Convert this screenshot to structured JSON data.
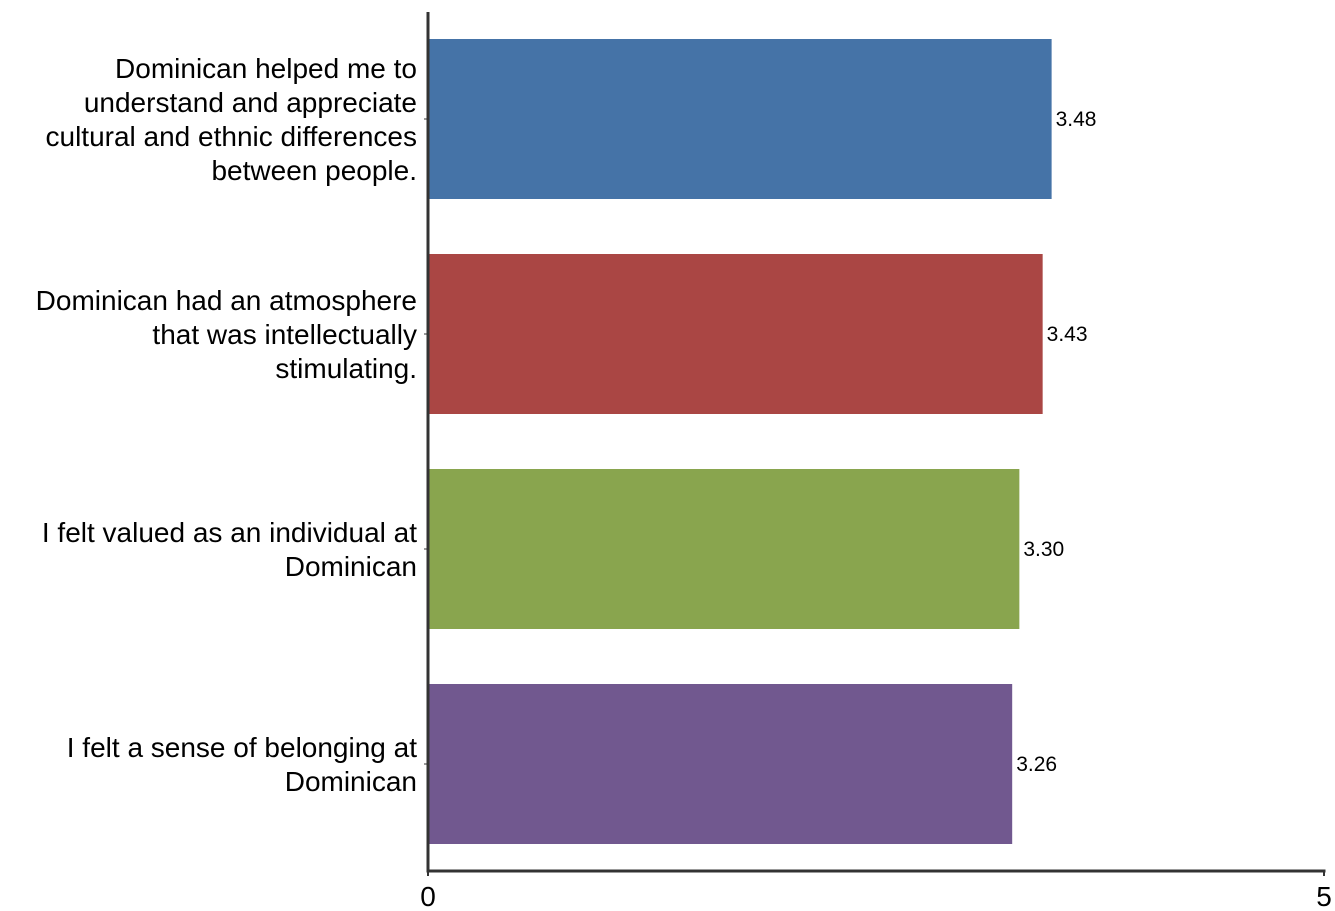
{
  "chart_data": {
    "type": "bar",
    "orientation": "horizontal",
    "categories": [
      "Dominican helped me to understand and appreciate cultural and ethnic differences between people.",
      "Dominican had an atmosphere that was intellectually stimulating.",
      "I felt valued as an individual at Dominican",
      "I felt a sense of belonging at Dominican"
    ],
    "category_lines": [
      [
        "Dominican helped me to",
        "understand and appreciate",
        "cultural and ethnic differences",
        "between people."
      ],
      [
        "Dominican had an atmosphere",
        "that was intellectually",
        "stimulating."
      ],
      [
        "I felt valued as an individual at",
        "Dominican"
      ],
      [
        "I felt a sense of belonging at",
        "Dominican"
      ]
    ],
    "values": [
      3.48,
      3.43,
      3.3,
      3.26
    ],
    "value_labels": [
      "3.48",
      "3.43",
      "3.30",
      "3.26"
    ],
    "colors": [
      "#4573a7",
      "#aa4644",
      "#89a54e",
      "#71588f"
    ],
    "xlim": [
      0,
      5
    ],
    "x_ticks": [
      "0",
      "5"
    ],
    "title": "",
    "xlabel": "",
    "ylabel": "",
    "grid": false,
    "legend": "none"
  }
}
